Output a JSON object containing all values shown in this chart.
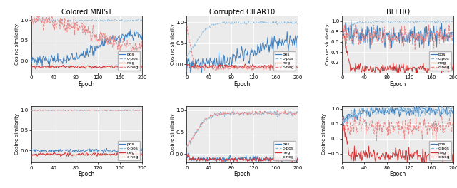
{
  "titles": [
    "Colored MNIST",
    "Corrupted CIFAR10",
    "BFFHQ"
  ],
  "xlabel": "Epoch",
  "ylabel": "Cosine similarity",
  "xlim": [
    0,
    200
  ],
  "xticks": [
    0,
    40,
    80,
    120,
    160,
    200
  ],
  "legend_labels": [
    "pos",
    "c-pos",
    "neg",
    "c-neg"
  ],
  "n_epochs": 201,
  "plots": [
    {
      "row": 0,
      "col": 0,
      "ylim": [
        -0.3,
        1.1
      ],
      "yticks": [
        0.0,
        0.5,
        1.0
      ]
    },
    {
      "row": 0,
      "col": 1,
      "ylim": [
        -0.2,
        1.15
      ],
      "yticks": [
        0.0,
        0.5,
        1.0
      ]
    },
    {
      "row": 0,
      "col": 2,
      "ylim": [
        0.0,
        1.1
      ],
      "yticks": [
        0.2,
        0.4,
        0.6,
        0.8,
        1.0
      ]
    },
    {
      "row": 1,
      "col": 0,
      "ylim": [
        -0.3,
        1.1
      ],
      "yticks": [
        0.0,
        0.5,
        1.0
      ]
    },
    {
      "row": 1,
      "col": 1,
      "ylim": [
        -0.2,
        1.1
      ],
      "yticks": [
        0.0,
        0.5,
        1.0
      ]
    },
    {
      "row": 1,
      "col": 2,
      "ylim": [
        -0.8,
        1.1
      ],
      "yticks": [
        -0.5,
        0.0,
        0.5,
        1.0
      ]
    }
  ],
  "pos_color": "#3a7dbf",
  "cpos_color": "#8ab8d8",
  "neg_color": "#d43030",
  "cneg_color": "#e88888",
  "bg_color": "#ebebeb",
  "grid_color": "#ffffff",
  "lw": 0.65
}
